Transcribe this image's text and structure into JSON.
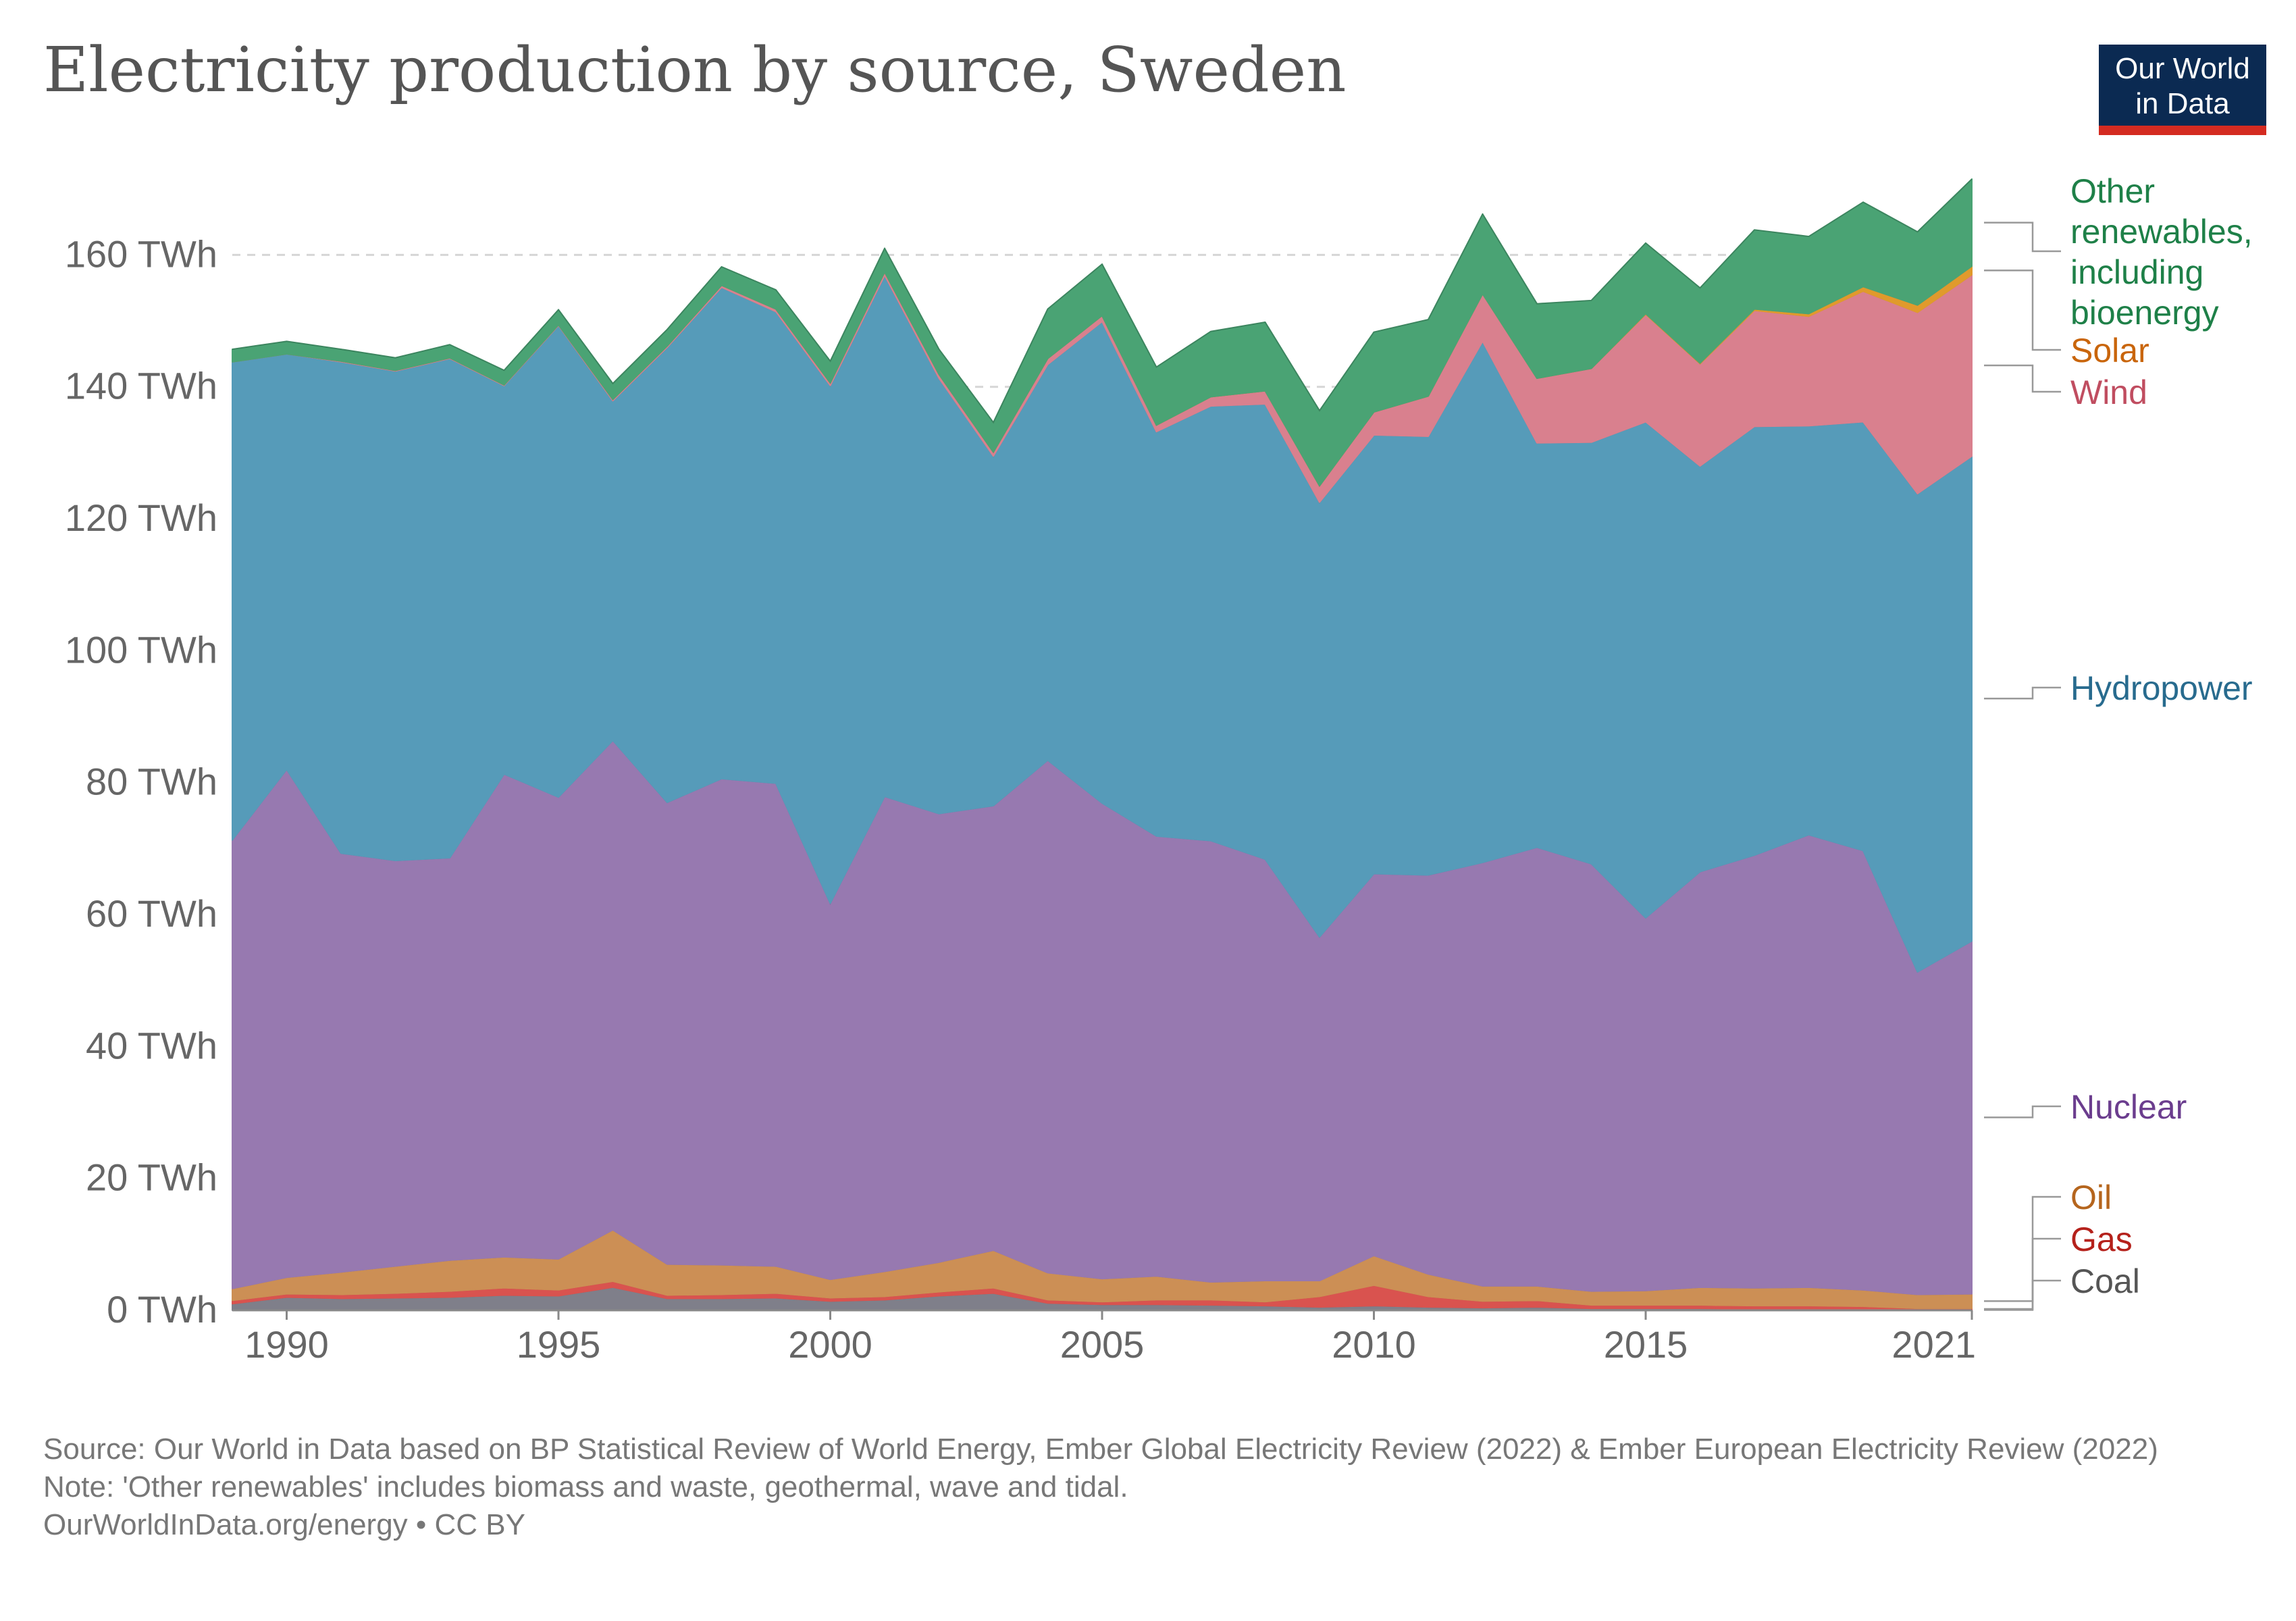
{
  "title": "Electricity production by source, Sweden",
  "logo": {
    "line1": "Our World",
    "line2": "in Data"
  },
  "footer": {
    "source": "Source: Our World in Data based on BP Statistical Review of World Energy, Ember Global Electricity Review (2022) & Ember European Electricity Review (2022)",
    "note": "Note: 'Other renewables' includes biomass and waste, geothermal, wave and tidal.",
    "url": "OurWorldInData.org/energy • CC BY"
  },
  "chart_data": {
    "type": "area",
    "stacked": true,
    "x": [
      1989,
      1990,
      1991,
      1992,
      1993,
      1994,
      1995,
      1996,
      1997,
      1998,
      1999,
      2000,
      2001,
      2002,
      2003,
      2004,
      2005,
      2006,
      2007,
      2008,
      2009,
      2010,
      2011,
      2012,
      2013,
      2014,
      2015,
      2016,
      2017,
      2018,
      2019,
      2020,
      2021
    ],
    "x_ticks": [
      "1990",
      "1995",
      "2000",
      "2005",
      "2010",
      "2015",
      "2021"
    ],
    "x_tick_values": [
      1990,
      1995,
      2000,
      2005,
      2010,
      2015,
      2021
    ],
    "y_ticks": [
      "0 TWh",
      "20 TWh",
      "40 TWh",
      "60 TWh",
      "80 TWh",
      "100 TWh",
      "120 TWh",
      "140 TWh",
      "160 TWh"
    ],
    "y_tick_values": [
      0,
      20,
      40,
      60,
      80,
      100,
      120,
      140,
      160
    ],
    "ylim": [
      0,
      171
    ],
    "xlim": [
      1989,
      2021
    ],
    "grid": "horizontal-dashed",
    "series": [
      {
        "name": "Coal",
        "color": "#7f7f8a",
        "label_color": "#555555",
        "values": [
          1.0,
          2.0,
          1.8,
          1.9,
          2.0,
          2.3,
          2.2,
          3.5,
          1.8,
          1.8,
          1.9,
          1.4,
          1.6,
          2.2,
          2.6,
          1.1,
          0.9,
          0.9,
          0.8,
          0.7,
          0.5,
          0.7,
          0.5,
          0.4,
          0.5,
          0.3,
          0.3,
          0.3,
          0.2,
          0.2,
          0.1,
          0.1,
          0.1
        ]
      },
      {
        "name": "Gas",
        "color": "#d9534f",
        "label_color": "#b5211b",
        "values": [
          0.5,
          0.5,
          0.6,
          0.7,
          0.9,
          1.1,
          0.9,
          0.9,
          0.5,
          0.6,
          0.7,
          0.5,
          0.5,
          0.6,
          0.8,
          0.5,
          0.4,
          0.7,
          0.8,
          0.6,
          1.6,
          3.1,
          1.6,
          1.0,
          1.0,
          0.5,
          0.5,
          0.5,
          0.5,
          0.5,
          0.5,
          0.2,
          0.2
        ]
      },
      {
        "name": "Oil",
        "color": "#cc8f55",
        "label_color": "#b5651d",
        "values": [
          1.8,
          2.5,
          3.4,
          4.1,
          4.7,
          4.7,
          4.7,
          7.8,
          4.7,
          4.5,
          4.1,
          2.8,
          3.8,
          4.5,
          5.7,
          4.1,
          3.5,
          3.6,
          2.7,
          3.2,
          2.4,
          4.5,
          3.4,
          2.3,
          2.2,
          2.1,
          2.2,
          2.7,
          2.7,
          2.8,
          2.5,
          2.1,
          2.2
        ]
      },
      {
        "name": "Nuclear",
        "color": "#9779b0",
        "label_color": "#6b3d8e",
        "values": [
          68.0,
          77.0,
          63.5,
          61.5,
          61.0,
          73.2,
          70.0,
          74.2,
          70.0,
          73.7,
          73.2,
          57.0,
          72.0,
          68.0,
          67.4,
          77.7,
          72.1,
          66.7,
          66.9,
          63.9,
          52.1,
          57.9,
          60.5,
          64.2,
          66.5,
          64.8,
          56.5,
          63.0,
          65.6,
          68.6,
          66.6,
          48.9,
          53.5
        ]
      },
      {
        "name": "Hydropower",
        "color": "#569bb9",
        "label_color": "#286b8e",
        "values": [
          72.5,
          63.0,
          74.5,
          74.2,
          75.7,
          58.9,
          71.5,
          51.5,
          69.0,
          74.5,
          71.5,
          78.5,
          79.0,
          66.0,
          53.0,
          60.0,
          73.0,
          61.3,
          65.9,
          69.0,
          65.9,
          66.5,
          66.5,
          79.0,
          61.3,
          63.9,
          75.2,
          61.5,
          65.0,
          62.0,
          65.0,
          72.5,
          73.5
        ]
      },
      {
        "name": "Wind",
        "color": "#d9808e",
        "label_color": "#c04d60",
        "values": [
          0.0,
          0.0,
          0.1,
          0.1,
          0.1,
          0.1,
          0.1,
          0.2,
          0.2,
          0.3,
          0.4,
          0.4,
          0.5,
          0.6,
          0.6,
          0.9,
          0.9,
          1.0,
          1.4,
          2.0,
          2.5,
          3.5,
          6.1,
          7.2,
          9.8,
          11.2,
          16.3,
          15.5,
          17.6,
          16.6,
          19.8,
          27.5,
          27.5
        ]
      },
      {
        "name": "Solar",
        "color": "#e09a2c",
        "label_color": "#c9650b",
        "values": [
          0,
          0,
          0,
          0,
          0,
          0,
          0,
          0,
          0,
          0,
          0,
          0,
          0,
          0,
          0,
          0,
          0,
          0,
          0,
          0,
          0,
          0,
          0,
          0,
          0,
          0,
          0.1,
          0.1,
          0.2,
          0.4,
          0.7,
          1.1,
          1.3
        ]
      },
      {
        "name": "Other renewables, including bioenergy",
        "color": "#4aa374",
        "label_color": "#1e8048",
        "values": [
          1.9,
          1.9,
          1.8,
          1.9,
          2.0,
          2.2,
          2.3,
          2.4,
          2.5,
          2.8,
          2.9,
          3.3,
          3.6,
          3.8,
          4.5,
          7.5,
          7.8,
          8.8,
          9.9,
          10.4,
          11.4,
          12.1,
          11.6,
          12.1,
          11.3,
          10.3,
          10.7,
          11.4,
          12.0,
          11.7,
          12.8,
          11.1,
          13.2
        ]
      }
    ],
    "legend": "right",
    "labels_lines": [
      [
        "Other",
        "renewables,",
        "including",
        "bioenergy"
      ],
      [
        "Solar"
      ],
      [
        "Wind"
      ],
      [
        "Hydropower"
      ],
      [
        "Nuclear"
      ],
      [
        "Oil"
      ],
      [
        "Gas"
      ],
      [
        "Coal"
      ]
    ]
  }
}
